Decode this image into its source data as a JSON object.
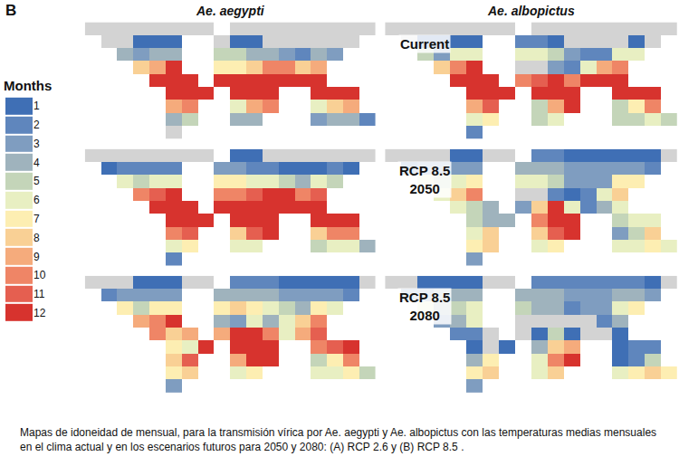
{
  "chart_data": {
    "type": "heatmap",
    "title": "B",
    "columns": [
      "Ae. aegypti",
      "Ae. albopictus"
    ],
    "rows": [
      [
        "Current"
      ],
      [
        "RCP 8.5",
        "2050"
      ],
      [
        "RCP 8.5",
        "2080"
      ]
    ],
    "tick_labels": false,
    "x": [
      -170,
      -150,
      -130,
      -110,
      -90,
      -70,
      -50,
      -30,
      -10,
      10,
      30,
      50,
      70,
      90,
      110,
      130,
      150,
      170
    ],
    "y": [
      67.5,
      52.5,
      37.5,
      22.5,
      7.5,
      -7.5,
      -22.5,
      -37.5,
      -52.5
    ],
    "xlim": [
      -180,
      180
    ],
    "ylim": [
      -60,
      75
    ],
    "zlim": [
      0,
      12
    ],
    "color_scale": {
      "title": "Months",
      "ticks": [
        1,
        2,
        3,
        4,
        5,
        6,
        7,
        8,
        9,
        10,
        11,
        12
      ],
      "colors": [
        "#3f6fb5",
        "#5f86bd",
        "#7f9dc0",
        "#9fb3bd",
        "#c4d5b9",
        "#e8efc2",
        "#fdeeb2",
        "#f9d095",
        "#f5ab7c",
        "#ef8566",
        "#e55f50",
        "#d7332e"
      ],
      "zero_color": "#d3d3d3"
    },
    "panels": [
      [
        [
          [
            0,
            0,
            0,
            0,
            0,
            0,
            0,
            0,
            null,
            0,
            0,
            0,
            0,
            0,
            0,
            0,
            0,
            0
          ],
          [
            null,
            0,
            0,
            1,
            1,
            1,
            null,
            null,
            0,
            1,
            1,
            0,
            0,
            0,
            0,
            0,
            0,
            null
          ],
          [
            null,
            null,
            4,
            3,
            4,
            4,
            null,
            null,
            5,
            5,
            4,
            4,
            3,
            2,
            4,
            3,
            null,
            null
          ],
          [
            null,
            null,
            null,
            8,
            9,
            12,
            null,
            null,
            7,
            7,
            8,
            10,
            10,
            8,
            9,
            null,
            null,
            null
          ],
          [
            null,
            null,
            null,
            null,
            12,
            12,
            12,
            null,
            12,
            12,
            12,
            12,
            12,
            12,
            12,
            null,
            null,
            null
          ],
          [
            null,
            null,
            null,
            null,
            null,
            12,
            12,
            12,
            null,
            12,
            12,
            12,
            null,
            null,
            12,
            12,
            12,
            null
          ],
          [
            null,
            null,
            null,
            null,
            null,
            9,
            10,
            null,
            null,
            6,
            9,
            10,
            null,
            null,
            6,
            8,
            9,
            null
          ],
          [
            null,
            null,
            null,
            null,
            null,
            4,
            5,
            null,
            null,
            4,
            4,
            null,
            null,
            null,
            3,
            4,
            4,
            2
          ],
          [
            null,
            null,
            null,
            null,
            null,
            0,
            null,
            null,
            null,
            null,
            null,
            null,
            null,
            null,
            null,
            null,
            null,
            null
          ]
        ],
        [
          [
            0,
            0,
            0,
            0,
            0,
            0,
            0,
            0,
            null,
            0,
            0,
            0,
            0,
            0,
            0,
            0,
            0,
            0
          ],
          [
            null,
            0,
            1,
            1,
            1,
            1,
            null,
            null,
            2,
            2,
            1,
            0,
            0,
            0,
            0,
            1,
            0,
            null
          ],
          [
            null,
            null,
            5,
            3,
            6,
            6,
            null,
            null,
            6,
            6,
            5,
            3,
            2,
            2,
            6,
            6,
            null,
            null
          ],
          [
            null,
            null,
            null,
            8,
            10,
            12,
            null,
            null,
            0,
            0,
            3,
            2,
            6,
            9,
            10,
            null,
            null,
            null
          ],
          [
            null,
            null,
            null,
            null,
            12,
            12,
            12,
            null,
            10,
            11,
            12,
            10,
            12,
            12,
            12,
            null,
            null,
            null
          ],
          [
            null,
            null,
            null,
            null,
            null,
            12,
            12,
            12,
            null,
            12,
            12,
            12,
            null,
            null,
            12,
            12,
            12,
            null
          ],
          [
            null,
            null,
            null,
            null,
            null,
            9,
            11,
            null,
            null,
            5,
            9,
            12,
            null,
            null,
            5,
            7,
            10,
            null
          ],
          [
            null,
            null,
            null,
            null,
            null,
            6,
            7,
            null,
            null,
            5,
            6,
            null,
            null,
            null,
            5,
            5,
            6,
            5
          ],
          [
            null,
            null,
            null,
            null,
            null,
            2,
            null,
            null,
            null,
            null,
            null,
            null,
            null,
            null,
            null,
            null,
            null,
            null
          ]
        ]
      ],
      [
        [
          [
            0,
            0,
            0,
            0,
            0,
            0,
            0,
            0,
            null,
            1,
            1,
            0,
            0,
            0,
            0,
            0,
            0,
            0
          ],
          [
            null,
            1,
            2,
            2,
            2,
            2,
            null,
            null,
            3,
            3,
            2,
            2,
            1,
            1,
            1,
            2,
            1,
            null
          ],
          [
            null,
            null,
            6,
            5,
            6,
            6,
            null,
            null,
            7,
            7,
            6,
            6,
            5,
            4,
            6,
            5,
            null,
            null
          ],
          [
            null,
            null,
            null,
            10,
            11,
            12,
            null,
            null,
            10,
            10,
            11,
            12,
            12,
            10,
            11,
            null,
            null,
            null
          ],
          [
            null,
            null,
            null,
            null,
            12,
            12,
            12,
            null,
            12,
            12,
            12,
            12,
            12,
            12,
            12,
            null,
            null,
            null
          ],
          [
            null,
            null,
            null,
            null,
            null,
            12,
            12,
            12,
            null,
            12,
            12,
            12,
            null,
            null,
            12,
            12,
            12,
            null
          ],
          [
            null,
            null,
            null,
            null,
            null,
            10,
            11,
            null,
            null,
            8,
            11,
            12,
            null,
            null,
            8,
            10,
            10,
            null
          ],
          [
            null,
            null,
            null,
            null,
            null,
            6,
            7,
            null,
            null,
            6,
            6,
            null,
            null,
            null,
            5,
            6,
            6,
            4
          ],
          [
            null,
            null,
            null,
            null,
            null,
            2,
            null,
            null,
            null,
            null,
            null,
            null,
            null,
            null,
            null,
            null,
            null,
            null
          ]
        ],
        [
          [
            0,
            0,
            0,
            0,
            1,
            1,
            0,
            0,
            null,
            2,
            2,
            1,
            1,
            1,
            1,
            1,
            1,
            0
          ],
          [
            null,
            2,
            3,
            3,
            3,
            3,
            null,
            null,
            4,
            4,
            4,
            3,
            3,
            3,
            3,
            3,
            2,
            null
          ],
          [
            null,
            null,
            6,
            5,
            6,
            7,
            null,
            null,
            6,
            6,
            5,
            3,
            3,
            3,
            7,
            7,
            null,
            null
          ],
          [
            null,
            null,
            null,
            6,
            8,
            10,
            null,
            null,
            0,
            0,
            2,
            1,
            2,
            6,
            8,
            null,
            null,
            null
          ],
          [
            null,
            null,
            null,
            null,
            6,
            5,
            4,
            null,
            3,
            8,
            12,
            6,
            2,
            4,
            6,
            null,
            null,
            null
          ],
          [
            null,
            null,
            null,
            null,
            null,
            5,
            4,
            4,
            null,
            10,
            12,
            12,
            null,
            null,
            5,
            6,
            6,
            null
          ],
          [
            null,
            null,
            null,
            null,
            null,
            6,
            8,
            null,
            null,
            8,
            11,
            12,
            null,
            null,
            3,
            5,
            8,
            null
          ],
          [
            null,
            null,
            null,
            null,
            null,
            7,
            8,
            null,
            null,
            6,
            7,
            null,
            null,
            null,
            6,
            6,
            7,
            6
          ],
          [
            null,
            null,
            null,
            null,
            null,
            3,
            null,
            null,
            null,
            null,
            null,
            null,
            null,
            null,
            null,
            null,
            null,
            null
          ]
        ]
      ],
      [
        [
          [
            0,
            0,
            0,
            1,
            1,
            1,
            0,
            0,
            null,
            2,
            2,
            2,
            1,
            1,
            1,
            1,
            1,
            0
          ],
          [
            null,
            2,
            3,
            3,
            3,
            3,
            null,
            null,
            4,
            4,
            4,
            4,
            3,
            3,
            3,
            3,
            2,
            null
          ],
          [
            null,
            null,
            7,
            5,
            7,
            7,
            null,
            null,
            7,
            8,
            7,
            6,
            5,
            4,
            7,
            6,
            null,
            null
          ],
          [
            null,
            null,
            null,
            9,
            10,
            12,
            null,
            null,
            4,
            3,
            6,
            4,
            6,
            8,
            10,
            null,
            null,
            null
          ],
          [
            null,
            null,
            null,
            null,
            10,
            8,
            9,
            null,
            9,
            12,
            12,
            10,
            6,
            9,
            11,
            null,
            null,
            null
          ],
          [
            null,
            null,
            null,
            null,
            null,
            7,
            6,
            12,
            null,
            12,
            12,
            12,
            null,
            null,
            10,
            11,
            12,
            null
          ],
          [
            null,
            null,
            null,
            null,
            null,
            8,
            11,
            null,
            null,
            9,
            12,
            12,
            null,
            null,
            5,
            7,
            10,
            null
          ],
          [
            null,
            null,
            null,
            null,
            null,
            7,
            8,
            null,
            null,
            6,
            7,
            null,
            null,
            null,
            6,
            6,
            7,
            5
          ],
          [
            null,
            null,
            null,
            null,
            null,
            3,
            null,
            null,
            null,
            null,
            null,
            null,
            null,
            null,
            null,
            null,
            null,
            null
          ]
        ],
        [
          [
            0,
            0,
            1,
            1,
            1,
            1,
            0,
            0,
            null,
            2,
            2,
            2,
            2,
            2,
            2,
            2,
            1,
            0
          ],
          [
            null,
            3,
            3,
            4,
            4,
            4,
            null,
            null,
            4,
            4,
            4,
            3,
            3,
            3,
            4,
            4,
            3,
            null
          ],
          [
            null,
            null,
            6,
            4,
            5,
            6,
            null,
            null,
            5,
            4,
            4,
            2,
            3,
            3,
            6,
            7,
            null,
            null
          ],
          [
            null,
            null,
            null,
            3,
            4,
            6,
            null,
            null,
            0,
            0,
            0,
            0,
            0,
            2,
            4,
            null,
            null,
            null
          ],
          [
            null,
            null,
            null,
            null,
            2,
            2,
            0,
            null,
            0,
            1,
            5,
            1,
            0,
            0,
            1,
            null,
            null,
            null
          ],
          [
            null,
            null,
            null,
            null,
            null,
            1,
            0,
            1,
            null,
            4,
            8,
            9,
            null,
            null,
            1,
            2,
            2,
            null
          ],
          [
            null,
            null,
            null,
            null,
            null,
            4,
            7,
            null,
            null,
            6,
            10,
            12,
            null,
            null,
            1,
            2,
            5,
            null
          ],
          [
            null,
            null,
            null,
            null,
            null,
            7,
            8,
            null,
            null,
            6,
            8,
            null,
            null,
            null,
            6,
            7,
            8,
            7
          ],
          [
            null,
            null,
            null,
            null,
            null,
            3,
            null,
            null,
            null,
            null,
            null,
            null,
            null,
            null,
            null,
            null,
            null,
            null
          ]
        ]
      ]
    ],
    "caption": "Mapas de idoneidad de mensual, para la transmisión vírica por Ae. aegypti y Ae. albopictus con las temperaturas medias mensuales en el clima actual y en los escenarios futuros para 2050 y 2080: (A) RCP 2.6 y (B) RCP 8.5 ."
  }
}
